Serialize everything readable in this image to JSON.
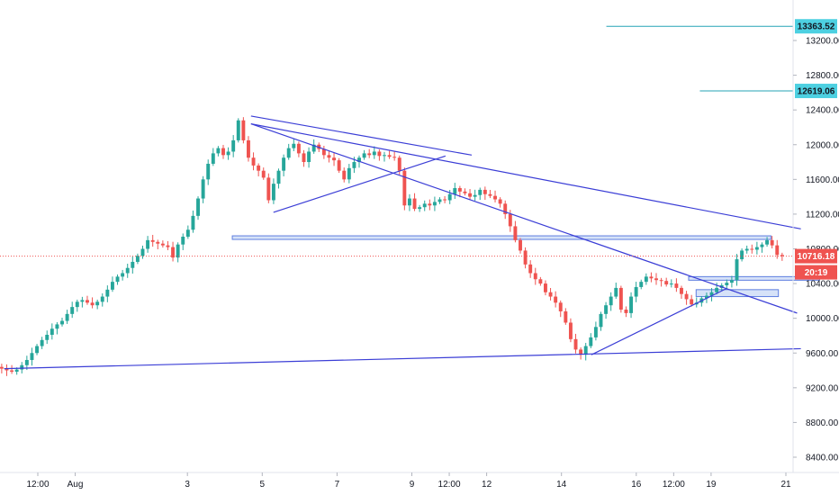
{
  "chart_data": {
    "type": "candlestick",
    "y_ticks": [
      "13200.00",
      "12800.00",
      "12400.00",
      "12000.00",
      "11600.00",
      "11200.00",
      "10800.00",
      "10400.00",
      "10000.00",
      "9600.00",
      "9200.00",
      "8800.00",
      "8400.00"
    ],
    "y_tick_values": [
      13200,
      12800,
      12400,
      12000,
      11600,
      11200,
      10800,
      10400,
      10000,
      9600,
      9200,
      8800,
      8400
    ],
    "ylim": [
      8270,
      13460
    ],
    "x_labels": [
      "12:00",
      "Aug",
      "3",
      "5",
      "7",
      "9",
      "12:00",
      "12",
      "14",
      "16",
      "12:00",
      "19",
      "21"
    ],
    "x_label_day_positions": [
      1.0,
      1.5,
      3.0,
      4.0,
      5.0,
      6.0,
      6.5,
      7.0,
      8.0,
      9.0,
      9.5,
      10.0,
      11.0
    ],
    "x_range_days": [
      0.45,
      11.48
    ],
    "closes": [
      9440,
      9420,
      9400,
      9385,
      9410,
      9460,
      9520,
      9600,
      9680,
      9750,
      9810,
      9880,
      9930,
      9970,
      10050,
      10130,
      10190,
      10210,
      10180,
      10150,
      10190,
      10250,
      10330,
      10420,
      10480,
      10520,
      10580,
      10650,
      10720,
      10800,
      10900,
      10880,
      10860,
      10840,
      10820,
      10700,
      10850,
      10940,
      11020,
      11180,
      11380,
      11600,
      11780,
      11900,
      11960,
      11880,
      11920,
      12050,
      12280,
      12050,
      11850,
      11760,
      11700,
      11620,
      11360,
      11550,
      11700,
      11850,
      11960,
      12010,
      11900,
      11800,
      11920,
      12000,
      11950,
      11880,
      11850,
      11820,
      11700,
      11600,
      11730,
      11800,
      11850,
      11900,
      11880,
      11920,
      11870,
      11880,
      11860,
      11850,
      11700,
      11300,
      11380,
      11260,
      11280,
      11320,
      11300,
      11340,
      11370,
      11360,
      11430,
      11500,
      11460,
      11440,
      11400,
      11420,
      11480,
      11430,
      11410,
      11370,
      11320,
      11200,
      11060,
      10900,
      10780,
      10620,
      10520,
      10450,
      10400,
      10300,
      10250,
      10180,
      10080,
      9950,
      9760,
      9640,
      9580,
      9680,
      9780,
      9900,
      10050,
      10150,
      10250,
      10350,
      10100,
      10060,
      10250,
      10360,
      10420,
      10480,
      10460,
      10440,
      10430,
      10390,
      10400,
      10350,
      10280,
      10220,
      10160,
      10180,
      10230,
      10260,
      10300,
      10350,
      10380,
      10410,
      10440,
      10680,
      10780,
      10800,
      10790,
      10820,
      10850,
      10900,
      10840,
      10730,
      10716.18
    ],
    "resistance_zones": [
      {
        "from": 10920,
        "to": 10950
      },
      {
        "from": 10440,
        "to": 10480
      },
      {
        "from": 10250,
        "to": 10330
      }
    ],
    "trend_lines": [
      {
        "from_day": 0.55,
        "from_price": 9420,
        "to_day": 11.2,
        "to_price": 9650
      },
      {
        "from_day": 3.85,
        "from_price": 12240,
        "to_day": 11.2,
        "to_price": 11030
      },
      {
        "from_day": 3.85,
        "from_price": 12240,
        "to_day": 11.15,
        "to_price": 10060
      },
      {
        "from_day": 3.85,
        "from_price": 12330,
        "to_day": 6.8,
        "to_price": 11880
      },
      {
        "from_day": 4.15,
        "from_price": 11220,
        "to_day": 6.45,
        "to_price": 11870
      },
      {
        "from_day": 8.4,
        "from_price": 9580,
        "to_day": 10.2,
        "to_price": 10340
      }
    ],
    "horizontal_levels": [
      {
        "value": 13363.52,
        "label": "13363.52",
        "from_day": 8.6
      },
      {
        "value": 12619.06,
        "label": "12619.06",
        "from_day": 9.85
      }
    ],
    "last_price": 10716.18,
    "last_price_label": "10716.18",
    "countdown_label": "20:19",
    "colors": {
      "up": "#26a69a",
      "down": "#ef5350",
      "trend": "#3b3ed6",
      "zone_fill": "#c5d6f5",
      "zone_stroke": "#5f7fe0",
      "level": "#26a3b5",
      "level_badge": "#4dd0e1",
      "price_line": "#ef5350",
      "price_badge": "#ef5350",
      "axis_text": "#131722"
    }
  }
}
